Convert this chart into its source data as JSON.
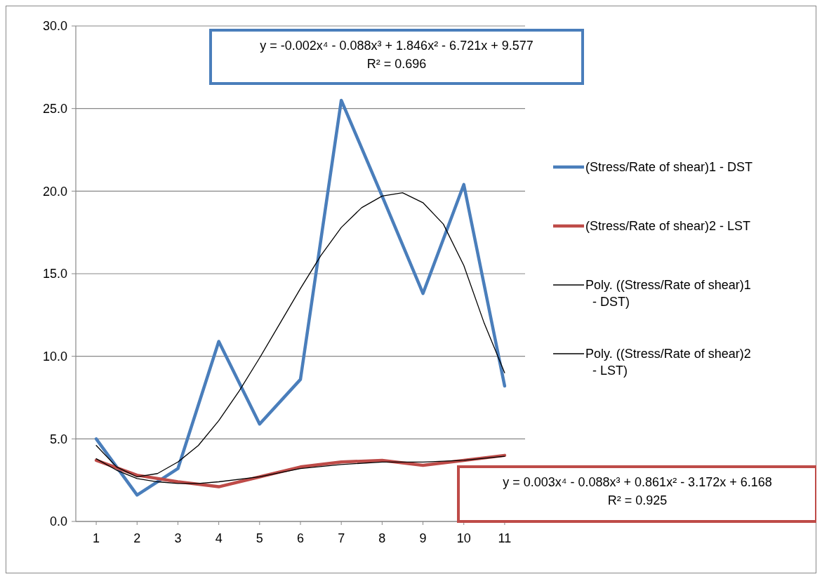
{
  "chart_data": {
    "type": "line",
    "x": [
      1,
      2,
      3,
      4,
      5,
      6,
      7,
      8,
      9,
      10,
      11
    ],
    "xlim": [
      0.5,
      11.5
    ],
    "xticks": [
      1,
      2,
      3,
      4,
      5,
      6,
      7,
      8,
      9,
      10,
      11
    ],
    "ylim": [
      0,
      30
    ],
    "yticks": [
      {
        "value": 0,
        "label": "0.0"
      },
      {
        "value": 5,
        "label": "5.0"
      },
      {
        "value": 10,
        "label": "10.0"
      },
      {
        "value": 15,
        "label": "15.0"
      },
      {
        "value": 20,
        "label": "20.0"
      },
      {
        "value": 25,
        "label": "25.0"
      },
      {
        "value": 30,
        "label": "30.0"
      }
    ],
    "grid": "y",
    "legend": "right",
    "marker": "none",
    "line_style": "solid",
    "series": [
      {
        "name": "(Stress/Rate of shear)1 - DST",
        "color": "#4a7ebb",
        "values": [
          5.0,
          1.6,
          3.2,
          10.9,
          5.9,
          8.6,
          25.5,
          19.7,
          13.8,
          20.4,
          8.2
        ]
      },
      {
        "name": "(Stress/Rate of shear)2 - LST",
        "color": "#be4b48",
        "values": [
          3.7,
          2.8,
          2.4,
          2.1,
          2.7,
          3.3,
          3.6,
          3.7,
          3.4,
          3.7,
          4.0
        ]
      },
      {
        "name": "Poly. ((Stress/Rate of shear)1 - DST)",
        "color": "#000000",
        "x": [
          1,
          1.5,
          2,
          2.5,
          3,
          3.5,
          4,
          4.5,
          5,
          5.5,
          6,
          6.5,
          7,
          7.5,
          8,
          8.5,
          9,
          9.5,
          10,
          10.5,
          11
        ],
        "values": [
          4.6,
          3.3,
          2.7,
          2.9,
          3.6,
          4.6,
          6.1,
          7.9,
          9.9,
          12.0,
          14.1,
          16.1,
          17.8,
          19.0,
          19.7,
          19.9,
          19.3,
          18.0,
          15.5,
          12.0,
          9.0
        ]
      },
      {
        "name": "Poly. ((Stress/Rate of shear)2 - LST)",
        "color": "#000000",
        "x": [
          1,
          1.5,
          2,
          2.5,
          3,
          3.5,
          4,
          5,
          6,
          7,
          8,
          9,
          10,
          11
        ],
        "values": [
          3.8,
          3.1,
          2.6,
          2.4,
          2.3,
          2.3,
          2.4,
          2.7,
          3.2,
          3.45,
          3.6,
          3.6,
          3.7,
          3.95
        ]
      }
    ],
    "annotations": [
      "y = -0.002x⁴ - 0.088x³ + 1.846x² - 6.721x + 9.577\nR² = 0.696",
      "y = 0.003x⁴ - 0.088x³ + 0.861x² - 3.172x + 6.168\nR² = 0.925"
    ]
  }
}
